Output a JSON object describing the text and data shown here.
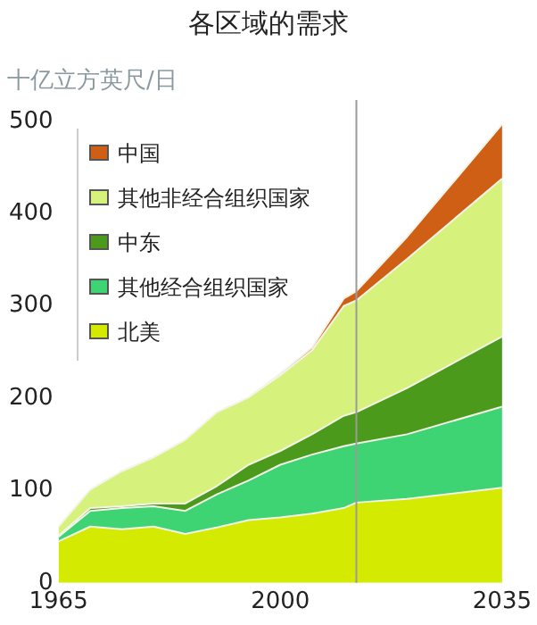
{
  "chart_data": {
    "type": "area",
    "title": "各区域的需求",
    "ylabel": "十亿立方英尺/日",
    "stacked": true,
    "legend": "top left",
    "grid": false,
    "x": [
      1965,
      1970,
      1975,
      1980,
      1985,
      1990,
      1995,
      2000,
      2005,
      2010,
      2012,
      2020,
      2035
    ],
    "xlim": [
      1965,
      2035
    ],
    "xticks": [
      1965,
      2000,
      2035
    ],
    "ylim": [
      0,
      500
    ],
    "yticks": [
      0,
      100,
      200,
      300,
      400,
      500
    ],
    "series": [
      {
        "name": "北美",
        "color": "#d4ea00",
        "values": [
          45,
          61,
          58,
          61,
          53,
          60,
          68,
          71,
          75,
          81,
          87,
          91,
          103
        ]
      },
      {
        "name": "其他经合组织国家",
        "color": "#3fd473",
        "values": [
          5,
          17,
          23,
          22,
          25,
          36,
          43,
          57,
          64,
          67,
          64,
          70,
          88
        ]
      },
      {
        "name": "中东",
        "color": "#4b9a1c",
        "values": [
          1,
          3,
          2,
          3,
          8,
          9,
          17,
          15,
          22,
          33,
          34,
          50,
          76
        ]
      },
      {
        "name": "其他非经合组织国家",
        "color": "#d6f27c",
        "values": [
          10,
          20,
          38,
          50,
          69,
          80,
          73,
          82,
          91,
          119,
          121,
          140,
          171
        ]
      },
      {
        "name": "中国",
        "color": "#cf5f14",
        "values": [
          0,
          0,
          0,
          0,
          0,
          0,
          0,
          2,
          3,
          8,
          10,
          24,
          59
        ]
      }
    ],
    "ref_lines": [
      {
        "axis": "x",
        "value": 2012,
        "color": "#9a9a9a"
      }
    ]
  }
}
